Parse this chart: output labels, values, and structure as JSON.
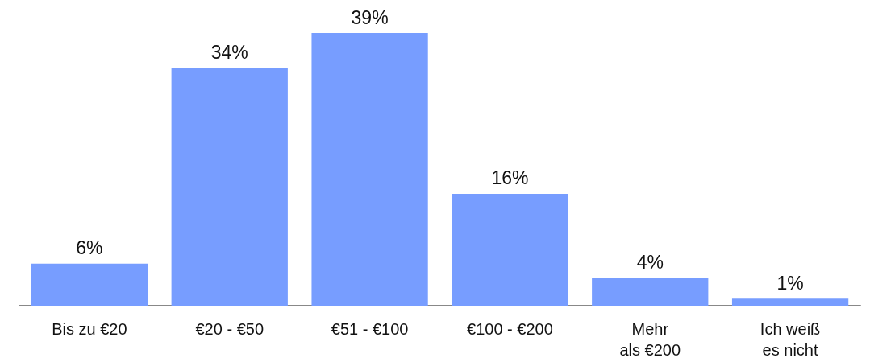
{
  "chart_data": {
    "type": "bar",
    "categories": [
      "Bis zu €20",
      "€20 - €50",
      "€51 - €100",
      "€100 - €200",
      "Mehr\nals €200",
      "Ich weiß\nes nicht"
    ],
    "values": [
      6,
      34,
      39,
      16,
      4,
      1
    ],
    "value_labels": [
      "6%",
      "34%",
      "39%",
      "16%",
      "4%",
      "1%"
    ],
    "color": "#779dff"
  }
}
